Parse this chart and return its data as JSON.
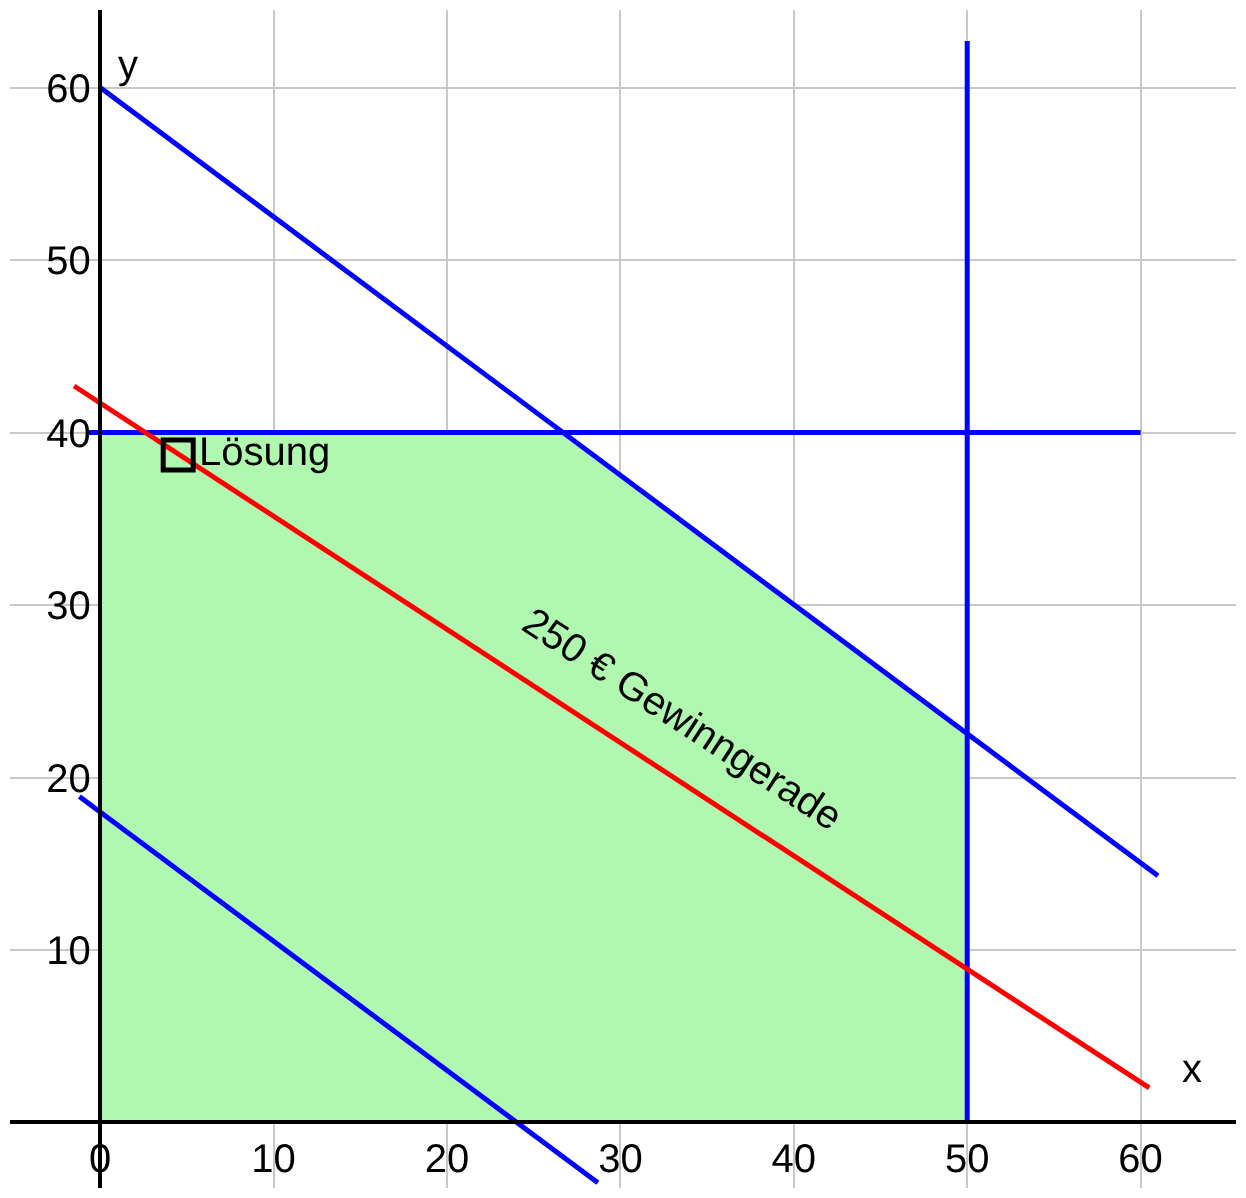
{
  "chart_data": {
    "type": "line",
    "xlabel": "x",
    "ylabel": "y",
    "xlim": [
      -5.2,
      65.5
    ],
    "ylim": [
      -3.8,
      64.5
    ],
    "xticks": [
      0,
      10,
      20,
      30,
      40,
      50,
      60
    ],
    "yticks": [
      10,
      20,
      30,
      40,
      50,
      60
    ],
    "grid": true,
    "legend": false,
    "series": [
      {
        "type": "area",
        "color": "#b0f7b0",
        "x": [
          0,
          26.7,
          50
        ],
        "values": [
          40,
          40,
          22.5
        ]
      },
      {
        "color": "#0000ff",
        "x": [
          0,
          61
        ],
        "values": [
          60,
          14.3
        ]
      },
      {
        "color": "#0000ff",
        "x": [
          -0.8,
          60
        ],
        "values": [
          40,
          40
        ]
      },
      {
        "color": "#0000ff",
        "x": [
          50,
          50
        ],
        "values": [
          0,
          62.7
        ]
      },
      {
        "color": "#0000ff",
        "x": [
          -1.2,
          28.7
        ],
        "values": [
          18.9,
          -3.5
        ]
      },
      {
        "name": "250 € Gewinngerade",
        "color": "#ff0000",
        "x": [
          -1.5,
          60.5
        ],
        "values": [
          42.7,
          2.0
        ]
      },
      {
        "type": "scatter",
        "name": "Lösung",
        "color": "#000000",
        "marker": "square",
        "x": [
          4.5
        ],
        "values": [
          38.7
        ]
      }
    ]
  }
}
